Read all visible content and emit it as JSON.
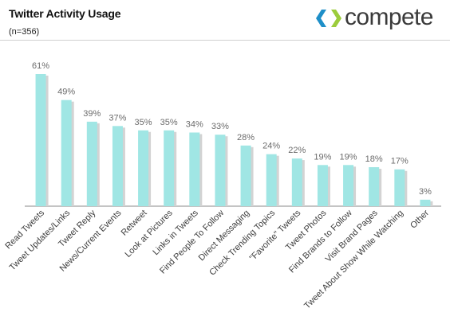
{
  "header": {
    "title": "Twitter Activity Usage",
    "subtitle": "(n=356)",
    "brand": "compete"
  },
  "colors": {
    "bar": "#a0e6e4",
    "bar_shadow": "#d3d3d3",
    "value_label": "#6b6b6b",
    "category_label": "#3d3d3d",
    "brand_blue": "#1e8fc8",
    "brand_green": "#9ccc3c"
  },
  "icons": [
    "compete-logo-icon"
  ],
  "chart_data": {
    "type": "bar",
    "categories": [
      "Read Tweets",
      "Tweet Updates/Links",
      "Tweet Reply",
      "News/Current Events",
      "Retweet",
      "Look at Pictures",
      "Links in Tweets",
      "Find People To Follow",
      "Direct Messaging",
      "Check Trending Topics",
      "\"Favorite\" Tweets",
      "Tweet Photos",
      "Find Brands to Follow",
      "Visit Brand Pages",
      "Tweet About Show While Watching",
      "Other"
    ],
    "values": [
      61,
      49,
      39,
      37,
      35,
      35,
      34,
      33,
      28,
      24,
      22,
      19,
      19,
      18,
      17,
      3
    ],
    "value_labels": [
      "61%",
      "49%",
      "39%",
      "37%",
      "35%",
      "35%",
      "34%",
      "33%",
      "28%",
      "24%",
      "22%",
      "19%",
      "19%",
      "18%",
      "17%",
      "3%"
    ],
    "title": "Twitter Activity Usage",
    "subtitle": "(n=356)",
    "xlabel": "",
    "ylabel": "",
    "ylim": [
      0,
      61
    ],
    "grid": false,
    "legend": "none"
  }
}
